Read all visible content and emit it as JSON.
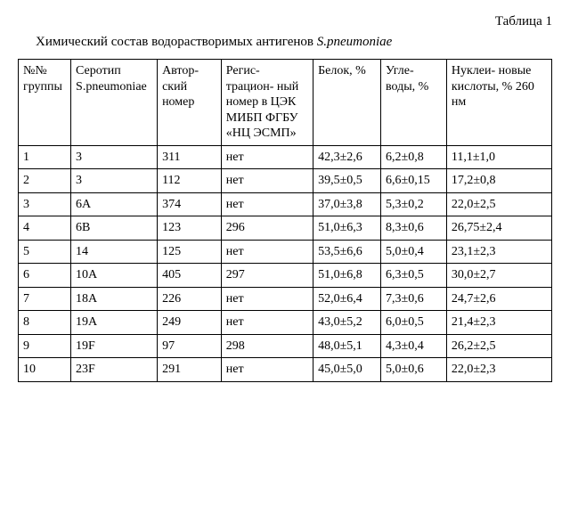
{
  "table_label": "Таблица 1",
  "caption_prefix": "Химический состав водорастворимых антигенов ",
  "caption_italic": "S.pneumoniae",
  "columns": [
    "№№ группы",
    "Серотип S.pneumoniae",
    "Автор-\nский номер",
    "Регис-\nтрацион-\nный номер в ЦЭК МИБП ФГБУ «НЦ ЭСМП»",
    "Белок, %",
    "Угле-\nводы, %",
    "Нуклеи-\nновые кислоты, % 260 нм"
  ],
  "rows": [
    [
      "1",
      "3",
      "311",
      "нет",
      "42,3±2,6",
      "6,2±0,8",
      "11,1±1,0"
    ],
    [
      "2",
      "3",
      "112",
      "нет",
      "39,5±0,5",
      "6,6±0,15",
      "17,2±0,8"
    ],
    [
      "3",
      "6A",
      "374",
      "нет",
      "37,0±3,8",
      "5,3±0,2",
      "22,0±2,5"
    ],
    [
      "4",
      "6B",
      "123",
      "296",
      "51,0±6,3",
      "8,3±0,6",
      "26,75±2,4"
    ],
    [
      "5",
      "14",
      "125",
      "нет",
      "53,5±6,6",
      "5,0±0,4",
      "23,1±2,3"
    ],
    [
      "6",
      "10A",
      "405",
      "297",
      "51,0±6,8",
      "6,3±0,5",
      "30,0±2,7"
    ],
    [
      "7",
      "18A",
      "226",
      "нет",
      "52,0±6,4",
      "7,3±0,6",
      "24,7±2,6"
    ],
    [
      "8",
      "19A",
      "249",
      "нет",
      "43,0±5,2",
      "6,0±0,5",
      "21,4±2,3"
    ],
    [
      "9",
      "19F",
      "97",
      "298",
      "48,0±5,1",
      "4,3±0,4",
      "26,2±2,5"
    ],
    [
      "10",
      "23F",
      "291",
      "нет",
      "45,0±5,0",
      "5,0±0,6",
      "22,0±2,3"
    ]
  ]
}
